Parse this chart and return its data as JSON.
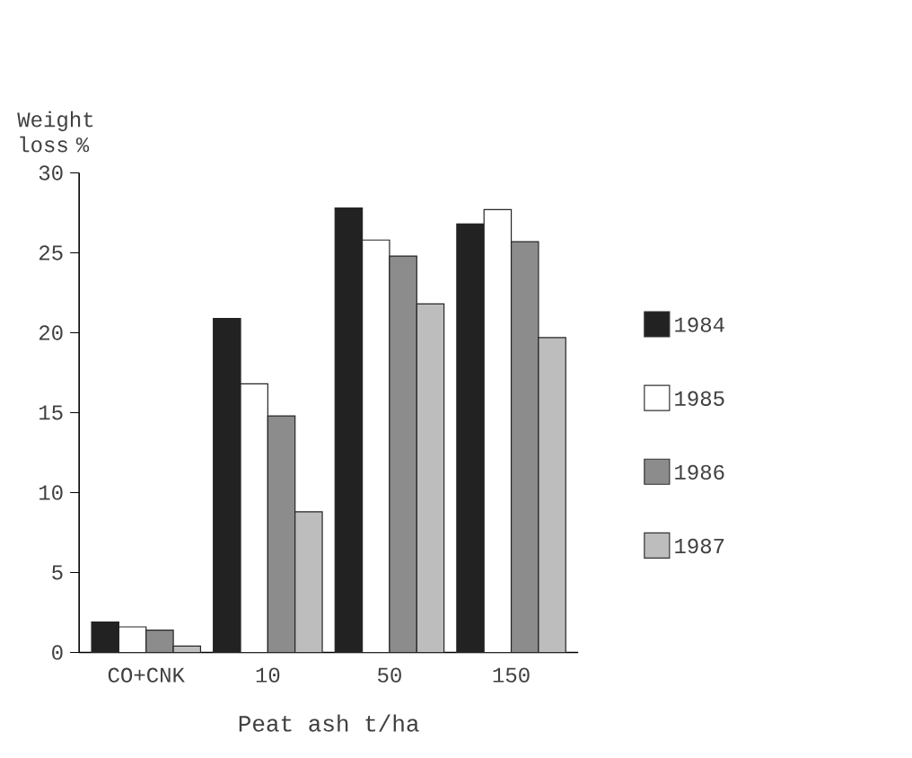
{
  "chart_data": {
    "type": "bar",
    "xlabel": "Peat ash t/ha",
    "ylabel": "Weight loss %",
    "categories": [
      "CO+CNK",
      "10",
      "50",
      "150"
    ],
    "series": [
      {
        "name": "1984",
        "color": "#222222",
        "values": [
          1.9,
          20.9,
          27.8,
          26.8
        ]
      },
      {
        "name": "1985",
        "color": "#ffffff",
        "values": [
          1.6,
          16.8,
          25.8,
          27.7
        ]
      },
      {
        "name": "1986",
        "color": "#8c8c8c",
        "values": [
          1.4,
          14.8,
          24.8,
          25.7
        ]
      },
      {
        "name": "1987",
        "color": "#bdbdbd",
        "values": [
          0.4,
          8.8,
          21.8,
          19.7
        ]
      }
    ],
    "ylim": [
      0,
      30
    ],
    "yticks": [
      0,
      5,
      10,
      15,
      20,
      25,
      30
    ],
    "grid": false,
    "legend": "right"
  }
}
